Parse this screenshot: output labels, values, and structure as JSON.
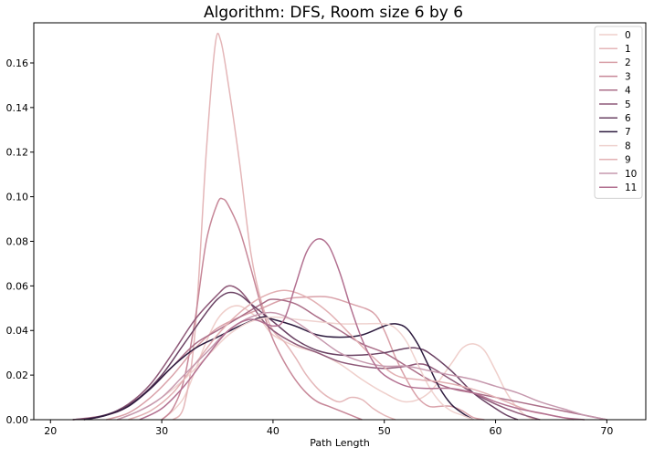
{
  "chart_data": {
    "type": "line",
    "title": "Algorithm: DFS, Room size 6 by 6",
    "xlabel": "Path Length",
    "ylabel": "",
    "xlim": [
      18.5,
      73.5
    ],
    "ylim": [
      0,
      0.178
    ],
    "xticks": [
      20,
      30,
      40,
      50,
      60,
      70
    ],
    "yticks": [
      0.0,
      0.02,
      0.04,
      0.06,
      0.08,
      0.1,
      0.12,
      0.14,
      0.16
    ],
    "ytick_labels": [
      "0.00",
      "0.02",
      "0.04",
      "0.06",
      "0.08",
      "0.10",
      "0.12",
      "0.14",
      "0.16"
    ],
    "grid": false,
    "legend_position": "top-right",
    "series": [
      {
        "name": "0",
        "color": "#efcfcb",
        "points": [
          [
            30,
            0
          ],
          [
            31,
            0.004
          ],
          [
            32,
            0.01
          ],
          [
            33,
            0.022
          ],
          [
            34,
            0.035
          ],
          [
            35,
            0.045
          ],
          [
            36,
            0.05
          ],
          [
            37,
            0.051
          ],
          [
            38,
            0.048
          ],
          [
            39,
            0.044
          ],
          [
            40,
            0.038
          ],
          [
            42,
            0.033
          ],
          [
            44,
            0.03
          ],
          [
            46,
            0.025
          ],
          [
            48,
            0.018
          ],
          [
            50,
            0.012
          ],
          [
            52,
            0.008
          ],
          [
            54,
            0.012
          ],
          [
            56,
            0.025
          ],
          [
            57,
            0.032
          ],
          [
            58,
            0.034
          ],
          [
            59,
            0.031
          ],
          [
            60,
            0.022
          ],
          [
            61,
            0.012
          ],
          [
            62,
            0.005
          ],
          [
            63,
            0.001
          ],
          [
            64,
            0
          ]
        ]
      },
      {
        "name": "1",
        "color": "#e4b6b8",
        "points": [
          [
            31,
            0
          ],
          [
            32,
            0.006
          ],
          [
            33,
            0.04
          ],
          [
            34,
            0.12
          ],
          [
            34.8,
            0.168
          ],
          [
            35.3,
            0.17
          ],
          [
            36,
            0.15
          ],
          [
            37,
            0.115
          ],
          [
            38,
            0.075
          ],
          [
            39,
            0.052
          ],
          [
            40,
            0.04
          ],
          [
            41,
            0.035
          ],
          [
            42,
            0.028
          ],
          [
            43,
            0.02
          ],
          [
            44,
            0.014
          ],
          [
            45,
            0.01
          ],
          [
            46,
            0.008
          ],
          [
            47,
            0.01
          ],
          [
            48,
            0.009
          ],
          [
            49,
            0.005
          ],
          [
            50,
            0.002
          ],
          [
            51,
            0
          ]
        ]
      },
      {
        "name": "2",
        "color": "#d9a1a9",
        "points": [
          [
            25,
            0
          ],
          [
            27,
            0.003
          ],
          [
            29,
            0.01
          ],
          [
            31,
            0.02
          ],
          [
            33,
            0.032
          ],
          [
            35,
            0.041
          ],
          [
            37,
            0.046
          ],
          [
            39,
            0.05
          ],
          [
            41,
            0.054
          ],
          [
            43,
            0.055
          ],
          [
            45,
            0.055
          ],
          [
            47,
            0.052
          ],
          [
            49,
            0.048
          ],
          [
            50,
            0.04
          ],
          [
            51,
            0.028
          ],
          [
            52,
            0.018
          ],
          [
            53,
            0.01
          ],
          [
            54,
            0.006
          ],
          [
            55,
            0.006
          ],
          [
            56,
            0.006
          ],
          [
            57,
            0.004
          ],
          [
            58,
            0.001
          ],
          [
            59,
            0
          ]
        ]
      },
      {
        "name": "3",
        "color": "#c78798",
        "points": [
          [
            30,
            0
          ],
          [
            31,
            0.005
          ],
          [
            32,
            0.018
          ],
          [
            33,
            0.045
          ],
          [
            34,
            0.08
          ],
          [
            35,
            0.097
          ],
          [
            35.5,
            0.099
          ],
          [
            36,
            0.096
          ],
          [
            37,
            0.085
          ],
          [
            38,
            0.068
          ],
          [
            39,
            0.05
          ],
          [
            40,
            0.036
          ],
          [
            41,
            0.026
          ],
          [
            42,
            0.018
          ],
          [
            43,
            0.012
          ],
          [
            44,
            0.008
          ],
          [
            45,
            0.006
          ],
          [
            46,
            0.004
          ],
          [
            47,
            0.002
          ],
          [
            48,
            0
          ]
        ]
      },
      {
        "name": "4",
        "color": "#ab6e88",
        "points": [
          [
            22,
            0
          ],
          [
            25,
            0.002
          ],
          [
            27,
            0.006
          ],
          [
            29,
            0.014
          ],
          [
            31,
            0.024
          ],
          [
            33,
            0.034
          ],
          [
            35,
            0.04
          ],
          [
            37,
            0.046
          ],
          [
            39,
            0.052
          ],
          [
            40,
            0.054
          ],
          [
            42,
            0.052
          ],
          [
            44,
            0.046
          ],
          [
            46,
            0.04
          ],
          [
            48,
            0.034
          ],
          [
            50,
            0.03
          ],
          [
            52,
            0.024
          ],
          [
            54,
            0.018
          ],
          [
            56,
            0.014
          ],
          [
            58,
            0.012
          ],
          [
            60,
            0.01
          ],
          [
            62,
            0.008
          ],
          [
            64,
            0.006
          ],
          [
            66,
            0.004
          ],
          [
            68,
            0.002
          ],
          [
            70,
            0
          ]
        ]
      },
      {
        "name": "5",
        "color": "#8e5978",
        "points": [
          [
            23,
            0
          ],
          [
            25,
            0.002
          ],
          [
            27,
            0.007
          ],
          [
            29,
            0.016
          ],
          [
            31,
            0.03
          ],
          [
            33,
            0.045
          ],
          [
            35,
            0.056
          ],
          [
            36,
            0.06
          ],
          [
            37,
            0.058
          ],
          [
            38,
            0.052
          ],
          [
            39,
            0.045
          ],
          [
            40,
            0.04
          ],
          [
            42,
            0.034
          ],
          [
            44,
            0.03
          ],
          [
            46,
            0.026
          ],
          [
            48,
            0.024
          ],
          [
            50,
            0.023
          ],
          [
            52,
            0.024
          ],
          [
            53,
            0.025
          ],
          [
            54,
            0.024
          ],
          [
            56,
            0.018
          ],
          [
            58,
            0.012
          ],
          [
            60,
            0.007
          ],
          [
            62,
            0.003
          ],
          [
            64,
            0
          ]
        ]
      },
      {
        "name": "6",
        "color": "#6a4263",
        "points": [
          [
            22,
            0
          ],
          [
            24,
            0.001
          ],
          [
            26,
            0.004
          ],
          [
            28,
            0.01
          ],
          [
            30,
            0.02
          ],
          [
            32,
            0.034
          ],
          [
            34,
            0.048
          ],
          [
            35,
            0.054
          ],
          [
            36,
            0.057
          ],
          [
            37,
            0.056
          ],
          [
            38,
            0.052
          ],
          [
            40,
            0.044
          ],
          [
            42,
            0.036
          ],
          [
            44,
            0.031
          ],
          [
            46,
            0.029
          ],
          [
            48,
            0.029
          ],
          [
            50,
            0.03
          ],
          [
            52,
            0.032
          ],
          [
            53,
            0.032
          ],
          [
            54,
            0.03
          ],
          [
            56,
            0.022
          ],
          [
            58,
            0.012
          ],
          [
            60,
            0.005
          ],
          [
            61,
            0.002
          ],
          [
            62,
            0
          ]
        ]
      },
      {
        "name": "7",
        "color": "#2d1b3e",
        "points": [
          [
            23,
            0
          ],
          [
            25,
            0.002
          ],
          [
            27,
            0.006
          ],
          [
            29,
            0.014
          ],
          [
            31,
            0.024
          ],
          [
            33,
            0.032
          ],
          [
            35,
            0.037
          ],
          [
            37,
            0.042
          ],
          [
            39,
            0.046
          ],
          [
            40,
            0.045
          ],
          [
            42,
            0.042
          ],
          [
            44,
            0.038
          ],
          [
            46,
            0.037
          ],
          [
            48,
            0.038
          ],
          [
            50,
            0.042
          ],
          [
            51,
            0.043
          ],
          [
            52,
            0.041
          ],
          [
            53,
            0.034
          ],
          [
            54,
            0.024
          ],
          [
            55,
            0.014
          ],
          [
            56,
            0.007
          ],
          [
            57,
            0.003
          ],
          [
            58,
            0
          ]
        ]
      },
      {
        "name": "8",
        "color": "#efd2cf",
        "points": [
          [
            26,
            0
          ],
          [
            28,
            0.004
          ],
          [
            30,
            0.01
          ],
          [
            32,
            0.018
          ],
          [
            34,
            0.028
          ],
          [
            36,
            0.038
          ],
          [
            38,
            0.044
          ],
          [
            40,
            0.046
          ],
          [
            42,
            0.045
          ],
          [
            44,
            0.044
          ],
          [
            46,
            0.043
          ],
          [
            48,
            0.043
          ],
          [
            50,
            0.043
          ],
          [
            51,
            0.041
          ],
          [
            52,
            0.035
          ],
          [
            53,
            0.025
          ],
          [
            54,
            0.015
          ],
          [
            55,
            0.008
          ],
          [
            56,
            0.004
          ],
          [
            57,
            0.002
          ],
          [
            58,
            0
          ]
        ]
      },
      {
        "name": "9",
        "color": "#e2b0b3",
        "points": [
          [
            27,
            0
          ],
          [
            29,
            0.004
          ],
          [
            31,
            0.012
          ],
          [
            33,
            0.025
          ],
          [
            35,
            0.038
          ],
          [
            37,
            0.048
          ],
          [
            39,
            0.055
          ],
          [
            41,
            0.058
          ],
          [
            43,
            0.055
          ],
          [
            45,
            0.048
          ],
          [
            47,
            0.038
          ],
          [
            49,
            0.028
          ],
          [
            51,
            0.02
          ],
          [
            53,
            0.018
          ],
          [
            55,
            0.017
          ],
          [
            57,
            0.015
          ],
          [
            59,
            0.012
          ],
          [
            61,
            0.008
          ],
          [
            63,
            0.004
          ],
          [
            65,
            0.002
          ],
          [
            67,
            0
          ]
        ]
      },
      {
        "name": "10",
        "color": "#c699ae",
        "points": [
          [
            26,
            0
          ],
          [
            28,
            0.004
          ],
          [
            30,
            0.01
          ],
          [
            32,
            0.02
          ],
          [
            34,
            0.03
          ],
          [
            36,
            0.04
          ],
          [
            38,
            0.046
          ],
          [
            40,
            0.048
          ],
          [
            42,
            0.044
          ],
          [
            44,
            0.037
          ],
          [
            46,
            0.03
          ],
          [
            48,
            0.026
          ],
          [
            50,
            0.024
          ],
          [
            52,
            0.024
          ],
          [
            54,
            0.022
          ],
          [
            56,
            0.02
          ],
          [
            58,
            0.018
          ],
          [
            60,
            0.015
          ],
          [
            62,
            0.012
          ],
          [
            64,
            0.008
          ],
          [
            66,
            0.005
          ],
          [
            68,
            0.002
          ],
          [
            70,
            0
          ]
        ]
      },
      {
        "name": "11",
        "color": "#b27090",
        "points": [
          [
            28,
            0
          ],
          [
            30,
            0.005
          ],
          [
            32,
            0.015
          ],
          [
            34,
            0.028
          ],
          [
            36,
            0.04
          ],
          [
            38,
            0.045
          ],
          [
            40,
            0.042
          ],
          [
            41,
            0.045
          ],
          [
            42,
            0.06
          ],
          [
            43,
            0.075
          ],
          [
            44,
            0.081
          ],
          [
            45,
            0.078
          ],
          [
            46,
            0.066
          ],
          [
            47,
            0.05
          ],
          [
            48,
            0.036
          ],
          [
            49,
            0.026
          ],
          [
            50,
            0.02
          ],
          [
            52,
            0.015
          ],
          [
            54,
            0.014
          ],
          [
            56,
            0.014
          ],
          [
            58,
            0.012
          ],
          [
            60,
            0.008
          ],
          [
            62,
            0.005
          ],
          [
            64,
            0.003
          ],
          [
            66,
            0.001
          ],
          [
            68,
            0
          ]
        ]
      }
    ]
  }
}
